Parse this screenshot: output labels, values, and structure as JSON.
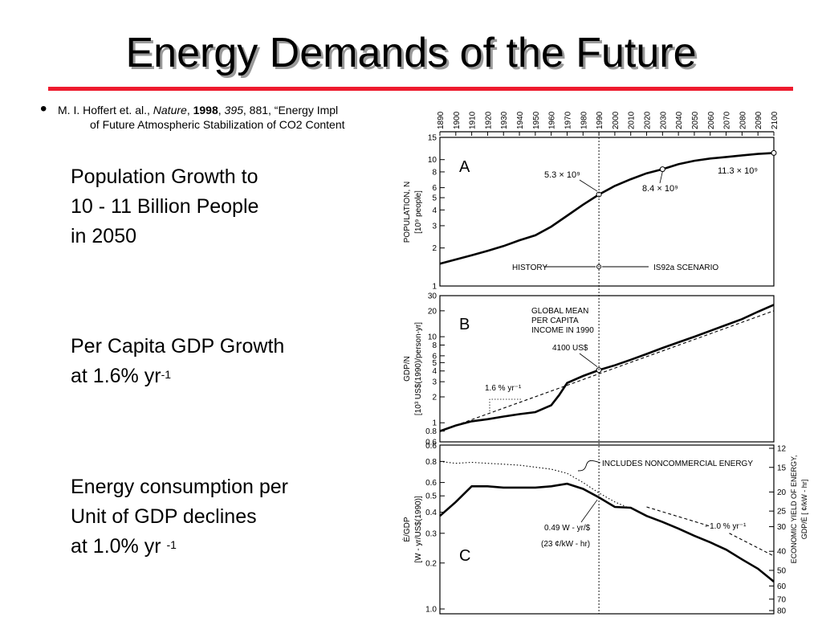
{
  "slide": {
    "title": "Energy Demands of the Future",
    "bullet_char": "•",
    "citation": {
      "authors": "M. I. Hoffert et. al., ",
      "journal": "Nature",
      "sep1": ", ",
      "year": "1998",
      "sep2": ", ",
      "volume": "395",
      "rest": ", 881, “Energy Impl",
      "line2": "of Future Atmospheric Stabilization of CO2 Content"
    },
    "text_blocks": {
      "population": {
        "line1": "Population Growth to",
        "line2": "10 - 11 Billion People",
        "line3": "in 2050"
      },
      "gdp": {
        "line1": "Per Capita GDP Growth",
        "line2_main": "at 1.6% yr",
        "line2_sup": "-1"
      },
      "energy": {
        "line1": "Energy consumption per",
        "line2": "Unit of GDP declines",
        "line3_main": "at 1.0% yr ",
        "line3_sup": "-1"
      }
    }
  },
  "chart_data": [
    {
      "panel": "A",
      "type": "line",
      "x_ticks": [
        1890,
        1900,
        1910,
        1920,
        1930,
        1940,
        1950,
        1960,
        1970,
        1980,
        1990,
        2000,
        2010,
        2020,
        2030,
        2040,
        2050,
        2060,
        2070,
        2080,
        2090,
        2100
      ],
      "xlim": [
        1890,
        2100
      ],
      "y_scale": "log",
      "ylim": [
        1,
        15
      ],
      "y_ticks": [
        1,
        2,
        3,
        4,
        5,
        6,
        8,
        10,
        15
      ],
      "ylabel_line1": "POPULATION, N",
      "ylabel_line2": "[10⁹ people]",
      "series": [
        {
          "style": "solid",
          "x": [
            1890,
            1900,
            1910,
            1920,
            1930,
            1940,
            1950,
            1960,
            1970,
            1980,
            1990,
            2000,
            2010,
            2020,
            2030,
            2040,
            2050,
            2060,
            2070,
            2080,
            2090,
            2100
          ],
          "y": [
            1.5,
            1.62,
            1.75,
            1.9,
            2.07,
            2.3,
            2.52,
            2.95,
            3.6,
            4.4,
            5.3,
            6.2,
            7.0,
            7.8,
            8.4,
            9.2,
            9.8,
            10.2,
            10.5,
            10.8,
            11.1,
            11.3
          ]
        }
      ],
      "annotations": {
        "label_1990": "5.3 × 10⁹",
        "label_2025": "8.4 × 10⁹",
        "label_2100": "11.3 × 10⁹",
        "history": "HISTORY",
        "scenario": "IS92a SCENARIO"
      }
    },
    {
      "panel": "B",
      "type": "line",
      "xlim": [
        1890,
        2100
      ],
      "y_scale": "log",
      "ylim": [
        0.6,
        30
      ],
      "y_ticks": [
        0.8,
        1,
        2,
        3,
        4,
        5,
        6,
        8,
        10,
        20,
        30
      ],
      "ylabel_line1": "GDP/N",
      "ylabel_line2": "[10³ US$(1990)/person-yr]",
      "series": [
        {
          "style": "solid",
          "x": [
            1890,
            1900,
            1910,
            1920,
            1930,
            1940,
            1950,
            1960,
            1965,
            1970,
            1980,
            1990,
            2000,
            2010,
            2020,
            2030,
            2040,
            2050,
            2060,
            2070,
            2080,
            2090,
            2100
          ],
          "y": [
            0.8,
            0.93,
            1.04,
            1.1,
            1.18,
            1.26,
            1.33,
            1.6,
            2.1,
            2.9,
            3.5,
            4.1,
            4.65,
            5.4,
            6.3,
            7.4,
            8.6,
            10.0,
            11.7,
            13.7,
            16.0,
            19.5,
            23.5
          ]
        },
        {
          "style": "dashed",
          "x": [
            1890,
            2100
          ],
          "y": [
            0.8,
            20.0
          ]
        }
      ],
      "annotations": {
        "note_line1": "GLOBAL MEAN",
        "note_line2": "PER CAPITA",
        "note_line3": "INCOME IN 1990",
        "note_value": "4100 US$",
        "rate": "1.6 % yr⁻¹"
      }
    },
    {
      "panel": "C",
      "type": "line",
      "xlim": [
        1890,
        2100
      ],
      "y_scale": "log",
      "ylim": [
        0.1,
        1.0
      ],
      "y_ticks": [
        1.0,
        0.2,
        0.3,
        0.4,
        0.5,
        0.6,
        0.8
      ],
      "ylabel_line1": "Ė/GDP",
      "ylabel_line2": "[W - yr/US$(1990)]",
      "y2label_line1": "ECONOMIC YIELD OF ENERGY,",
      "y2label_line2": "GDP/Ė [ ¢/kW - hr]",
      "y2_ticks": [
        12,
        15,
        20,
        25,
        30,
        40,
        50,
        60,
        70,
        80
      ],
      "series": [
        {
          "style": "solid",
          "x": [
            1890,
            1900,
            1910,
            1920,
            1930,
            1940,
            1950,
            1960,
            1970,
            1980,
            1990,
            2000,
            2010,
            2020,
            2030,
            2040,
            2050,
            2060,
            2070,
            2080,
            2090,
            2100
          ],
          "y": [
            0.38,
            0.46,
            0.57,
            0.57,
            0.56,
            0.56,
            0.56,
            0.57,
            0.59,
            0.55,
            0.49,
            0.43,
            0.425,
            0.38,
            0.35,
            0.32,
            0.29,
            0.265,
            0.24,
            0.21,
            0.185,
            0.155
          ]
        },
        {
          "style": "dotted",
          "x": [
            1890,
            1900,
            1910,
            1920,
            1930,
            1940,
            1950,
            1960,
            1970,
            1980,
            1990,
            2000,
            2010
          ],
          "y": [
            0.8,
            0.78,
            0.79,
            0.78,
            0.77,
            0.76,
            0.74,
            0.72,
            0.68,
            0.6,
            0.52,
            0.46,
            0.42
          ]
        },
        {
          "style": "dashed",
          "x": [
            2020,
            2060
          ],
          "y": [
            0.43,
            0.33
          ]
        },
        {
          "style": "dashed",
          "x": [
            2072,
            2100
          ],
          "y": [
            0.3,
            0.22
          ]
        }
      ],
      "annotations": {
        "noncommercial": "INCLUDES NONCOMMERCIAL ENERGY",
        "value_line1": "0.49 W - yr/$",
        "value_line2": "(23 ¢/kW - hr)",
        "rate": "- 1.0 % yr⁻¹"
      }
    }
  ]
}
